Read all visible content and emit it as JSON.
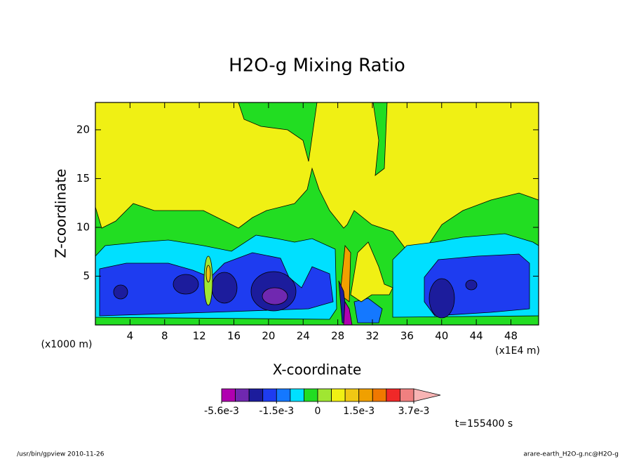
{
  "chart_data": {
    "type": "contour",
    "title": "H2O-g Mixing Ratio",
    "xlabel": "X-coordinate",
    "ylabel": "Z-coordinate",
    "xunit": "(x1E4 m)",
    "yunit": "(x1000 m)",
    "xlim": [
      0,
      51.2
    ],
    "ylim": [
      0,
      22.8
    ],
    "xticks": [
      4,
      8,
      12,
      16,
      20,
      24,
      28,
      32,
      36,
      40,
      44,
      48
    ],
    "yticks": [
      5,
      10,
      15,
      20
    ],
    "colorbar": {
      "colors": [
        "#b000b0",
        "#7028b0",
        "#1c1c9c",
        "#1e3cf0",
        "#1478ff",
        "#00e0ff",
        "#22dd22",
        "#a0e632",
        "#f0f014",
        "#f0c814",
        "#f0a000",
        "#f07800",
        "#f02828",
        "#f08080",
        "#f8b4b4"
      ],
      "levels": [
        -0.0056,
        -0.0035,
        -0.0025,
        -0.002,
        -0.0015,
        -0.001,
        -0.0005,
        0,
        0.0005,
        0.001,
        0.0015,
        0.002,
        0.0025,
        0.003,
        0.0037
      ],
      "ticks": [
        {
          "value": -0.0056,
          "label": "-5.6e-3"
        },
        {
          "value": -0.0015,
          "label": "-1.5e-3"
        },
        {
          "value": 0,
          "label": "0"
        },
        {
          "value": 0.0015,
          "label": "1.5e-3"
        },
        {
          "value": 0.0037,
          "label": "3.7e-3"
        }
      ]
    },
    "time_label": "t=155400 s",
    "footer_left": "/usr/bin/gpview  2010-11-26",
    "footer_right": "arare-earth_H2O-g.nc@H2O-g"
  }
}
